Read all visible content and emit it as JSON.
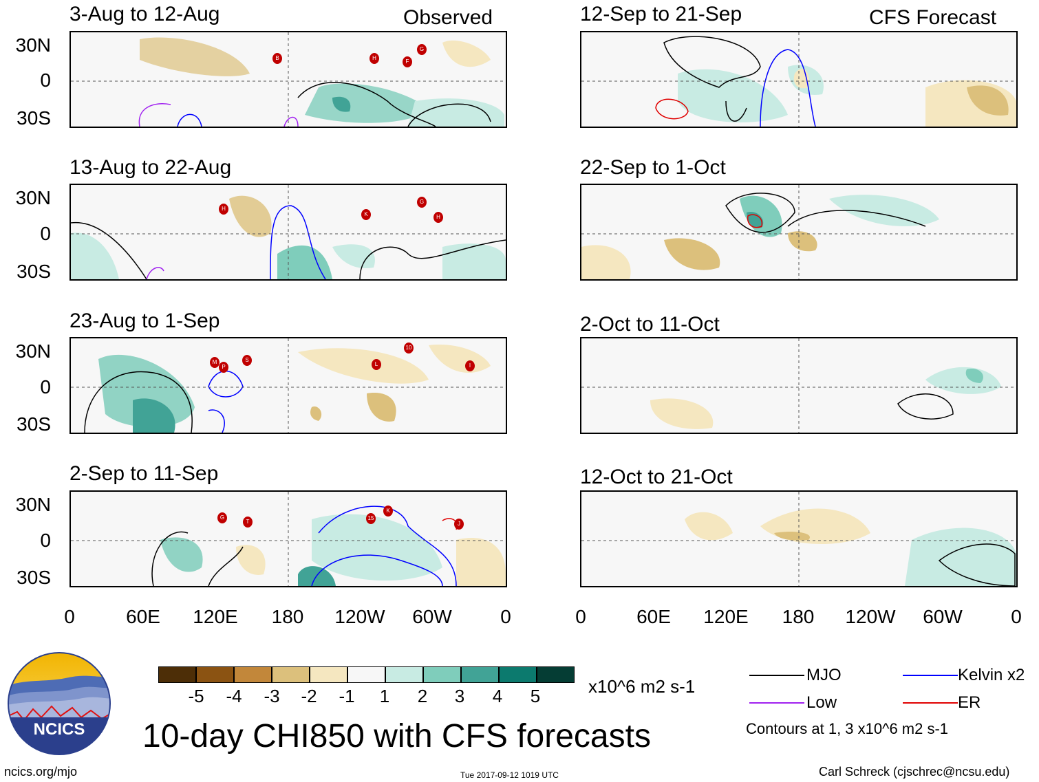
{
  "headers": {
    "left": "Observed",
    "right": "CFS Forecast"
  },
  "panels": [
    {
      "title": "3-Aug to 12-Aug"
    },
    {
      "title": "13-Aug to 22-Aug"
    },
    {
      "title": "23-Aug to 1-Sep"
    },
    {
      "title": "2-Sep to 11-Sep"
    },
    {
      "title": "12-Sep to 21-Sep"
    },
    {
      "title": "22-Sep to 1-Oct"
    },
    {
      "title": "2-Oct to 11-Oct"
    },
    {
      "title": "12-Oct to 21-Oct"
    }
  ],
  "lat_labels": [
    "30N",
    "0",
    "30S"
  ],
  "lon_labels": [
    "0",
    "60E",
    "120E",
    "180",
    "120W",
    "60W",
    "0"
  ],
  "storm_markers": {
    "p0": [
      "B",
      "H",
      "F",
      "G"
    ],
    "p1": [
      "H",
      "K",
      "G",
      "H"
    ],
    "p2": [
      "M",
      "P",
      "S",
      "L",
      "10",
      "I"
    ],
    "p3": [
      "G",
      "T",
      "15",
      "K",
      "J"
    ]
  },
  "colorbar": {
    "colors": [
      "#4d2e07",
      "#8b5312",
      "#c2873a",
      "#dcc07c",
      "#f5e7c0",
      "#f7f7f7",
      "#c8ebe3",
      "#7fcdbb",
      "#41a396",
      "#0c7a6e",
      "#053d34"
    ],
    "labels": [
      "-5",
      "-4",
      "-3",
      "-2",
      "-1",
      "1",
      "2",
      "3",
      "4",
      "5"
    ],
    "units": "x10^6 m2 s-1"
  },
  "legend": {
    "items": [
      {
        "label": "MJO",
        "color": "#000000"
      },
      {
        "label": "Low",
        "color": "#a020f0"
      },
      {
        "label": "Kelvin x2",
        "color": "#0000ff"
      },
      {
        "label": "ER",
        "color": "#e00000"
      }
    ],
    "note": "Contours at 1, 3 x10^6 m2 s-1"
  },
  "title": "10-day CHI850 with CFS forecasts",
  "logo_text": "NCICS",
  "footer": {
    "url": "ncics.org/mjo",
    "timestamp": "Tue 2017-09-12 1019 UTC",
    "author": "Carl Schreck (cjschrec@ncsu.edu)"
  }
}
